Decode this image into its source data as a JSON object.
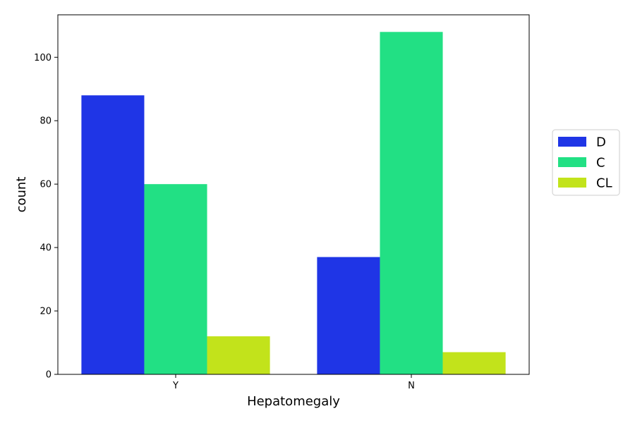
{
  "chart_data": {
    "type": "bar",
    "xlabel": "Hepatomegaly",
    "ylabel": "count",
    "categories": [
      "Y",
      "N"
    ],
    "series": [
      {
        "name": "D",
        "color": "#1f35e6",
        "values": [
          88,
          37
        ]
      },
      {
        "name": "C",
        "color": "#22e084",
        "values": [
          60,
          108
        ]
      },
      {
        "name": "CL",
        "color": "#c2e31b",
        "values": [
          12,
          7
        ]
      }
    ],
    "ylim": [
      0,
      113.4
    ],
    "yticks": [
      0,
      20,
      40,
      60,
      80,
      100
    ],
    "grid": false,
    "legend_position": "right"
  }
}
